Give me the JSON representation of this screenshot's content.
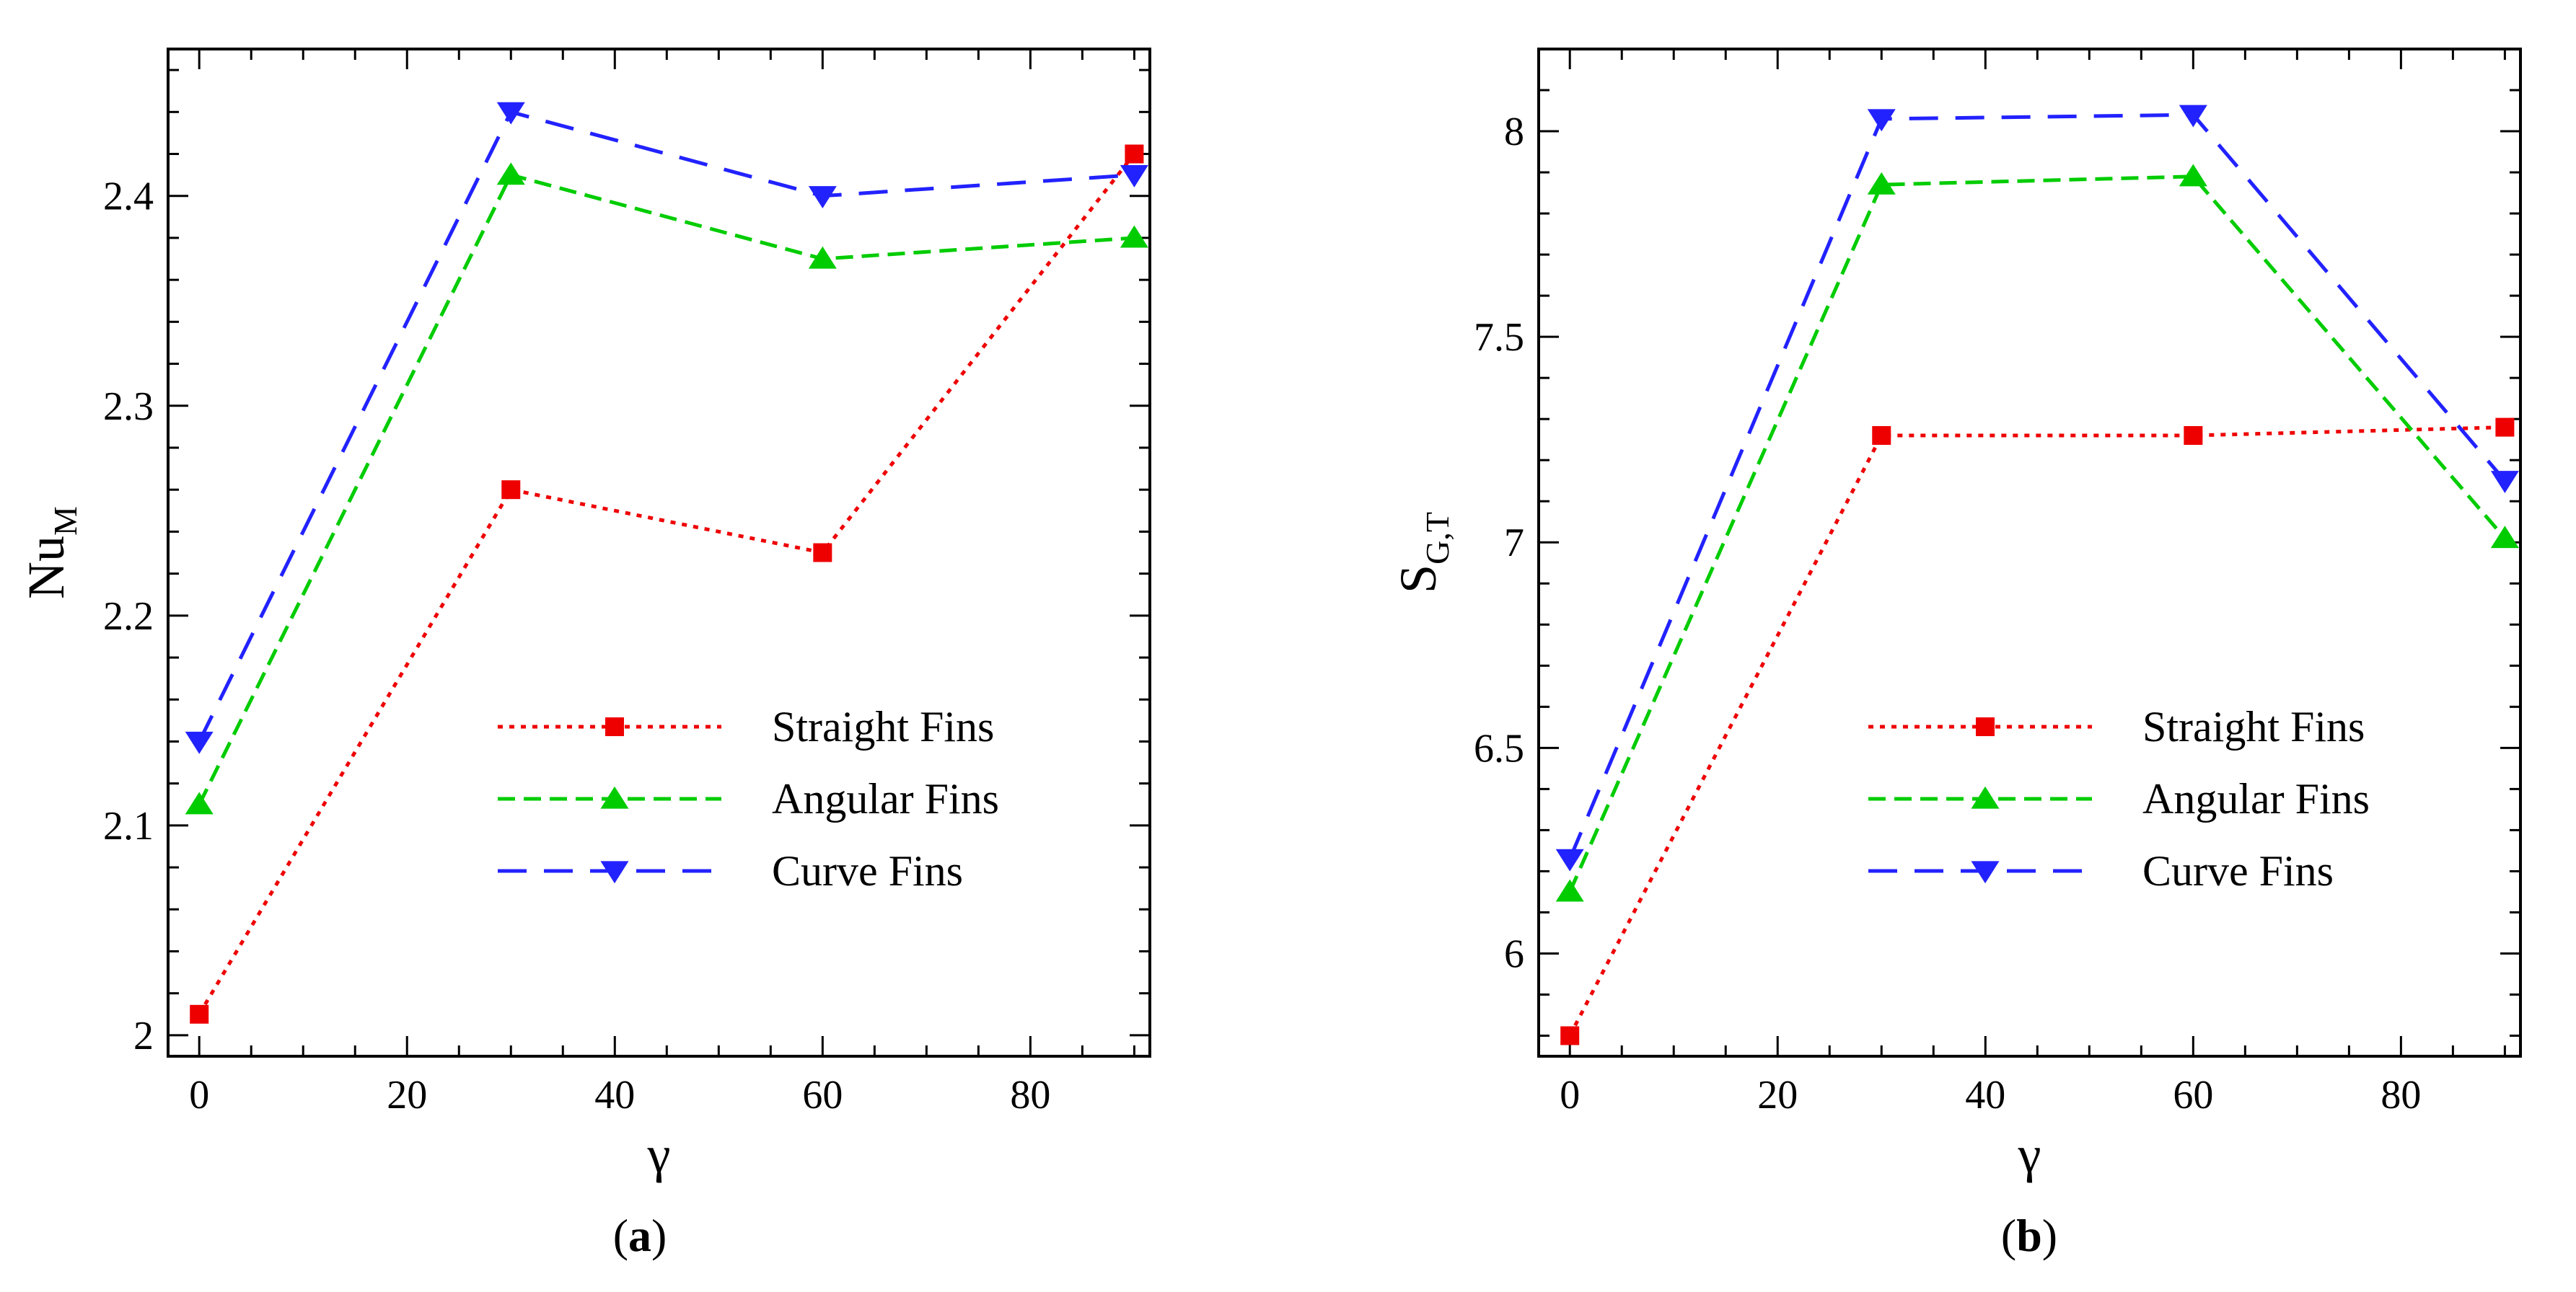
{
  "chart_data": [
    {
      "type": "line",
      "caption_prefix": "(",
      "caption_letter": "a",
      "caption_suffix": ")",
      "xlabel": "γ",
      "ylabel_main": "Nu",
      "ylabel_sub": "M",
      "xlim": [
        -3,
        91.5
      ],
      "ylim": [
        1.99,
        2.47
      ],
      "xticks": [
        0,
        20,
        40,
        60,
        80
      ],
      "xtick_labels": [
        "0",
        "20",
        "40",
        "60",
        "80"
      ],
      "yticks": [
        2,
        2.1,
        2.2,
        2.3,
        2.4
      ],
      "ytick_labels": [
        "2",
        "2.1",
        "2.2",
        "2.3",
        "2.4"
      ],
      "x": [
        0,
        30,
        60,
        90
      ],
      "series": [
        {
          "name": "Straight Fins",
          "color": "#ee0000",
          "marker": "square",
          "values": [
            2.01,
            2.26,
            2.23,
            2.42
          ]
        },
        {
          "name": "Angular Fins",
          "color": "#00cc00",
          "marker": "triangle-up",
          "values": [
            2.11,
            2.41,
            2.37,
            2.38
          ]
        },
        {
          "name": "Curve Fins",
          "color": "#2222ff",
          "marker": "triangle-down",
          "values": [
            2.14,
            2.44,
            2.4,
            2.41
          ]
        }
      ],
      "grid": false,
      "legend_position": "center-right"
    },
    {
      "type": "line",
      "caption_prefix": "(",
      "caption_letter": "b",
      "caption_suffix": ")",
      "xlabel": "γ",
      "ylabel_main": "S",
      "ylabel_sub": "G,T",
      "xlim": [
        -3,
        91.5
      ],
      "ylim": [
        5.75,
        8.2
      ],
      "xticks": [
        0,
        20,
        40,
        60,
        80
      ],
      "xtick_labels": [
        "0",
        "20",
        "40",
        "60",
        "80"
      ],
      "yticks": [
        6,
        6.5,
        7,
        7.5,
        8
      ],
      "ytick_labels": [
        "6",
        "6.5",
        "7",
        "7.5",
        "8"
      ],
      "x": [
        0,
        30,
        60,
        90
      ],
      "series": [
        {
          "name": "Straight Fins",
          "color": "#ee0000",
          "marker": "square",
          "values": [
            5.8,
            7.26,
            7.26,
            7.28
          ]
        },
        {
          "name": "Angular Fins",
          "color": "#00cc00",
          "marker": "triangle-up",
          "values": [
            6.15,
            7.87,
            7.89,
            7.01
          ]
        },
        {
          "name": "Curve Fins",
          "color": "#2222ff",
          "marker": "triangle-down",
          "values": [
            6.23,
            8.03,
            8.04,
            7.15
          ]
        }
      ],
      "grid": false,
      "legend_position": "center-right"
    }
  ]
}
